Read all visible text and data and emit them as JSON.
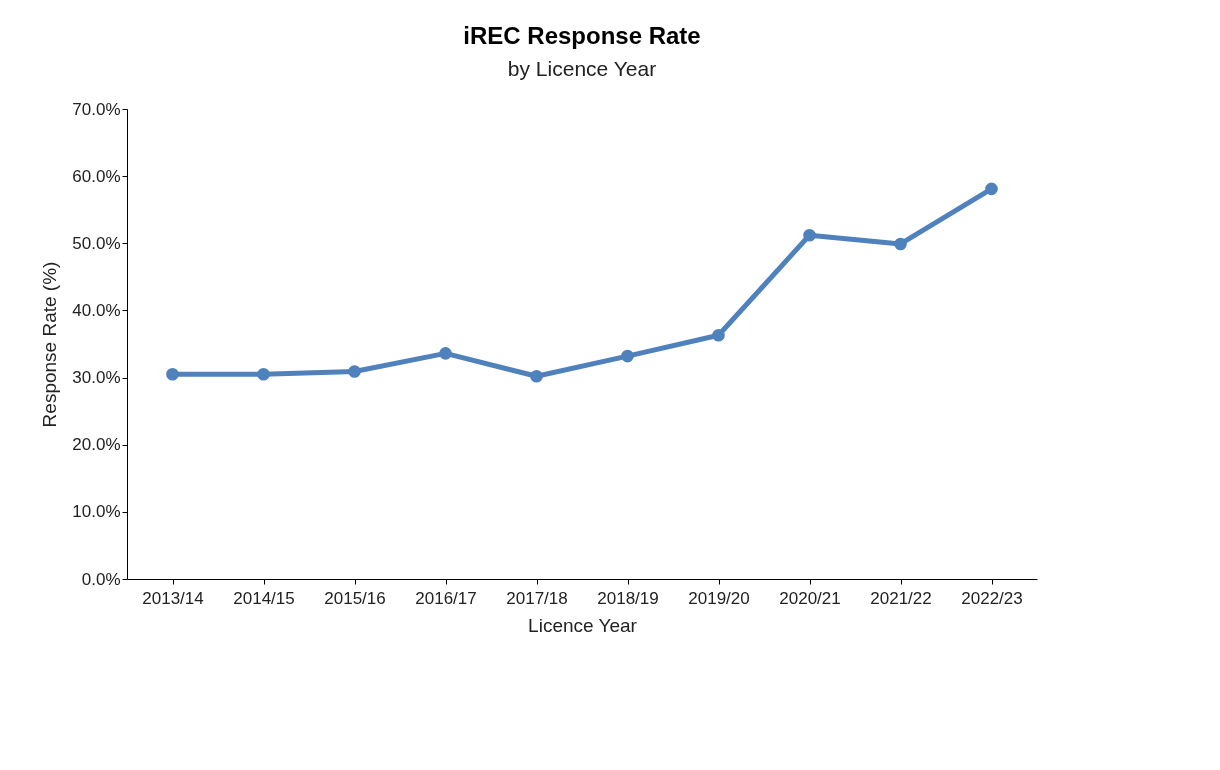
{
  "chart_data": {
    "type": "line",
    "title": "iREC Response Rate",
    "subtitle": "by Licence Year",
    "xlabel": "Licence Year",
    "ylabel": "Response Rate (%)",
    "categories": [
      "2013/14",
      "2014/15",
      "2015/16",
      "2016/17",
      "2017/18",
      "2018/19",
      "2019/20",
      "2020/21",
      "2021/22",
      "2022/23"
    ],
    "series": [
      {
        "color": "#4f81bd",
        "values": [
          30.5,
          30.5,
          30.9,
          33.6,
          30.2,
          33.2,
          36.3,
          51.2,
          49.9,
          58.1
        ]
      }
    ],
    "ylim": [
      0,
      70
    ],
    "yticks": [
      {
        "value": 0,
        "label": "0.0%"
      },
      {
        "value": 10,
        "label": "10.0%"
      },
      {
        "value": 20,
        "label": "20.0%"
      },
      {
        "value": 30,
        "label": "30.0%"
      },
      {
        "value": 40,
        "label": "40.0%"
      },
      {
        "value": 50,
        "label": "50.0%"
      },
      {
        "value": 60,
        "label": "60.0%"
      },
      {
        "value": 70,
        "label": "70.0%"
      }
    ],
    "grid": false,
    "legend": false,
    "marker": "circle",
    "line_style": "solid"
  }
}
